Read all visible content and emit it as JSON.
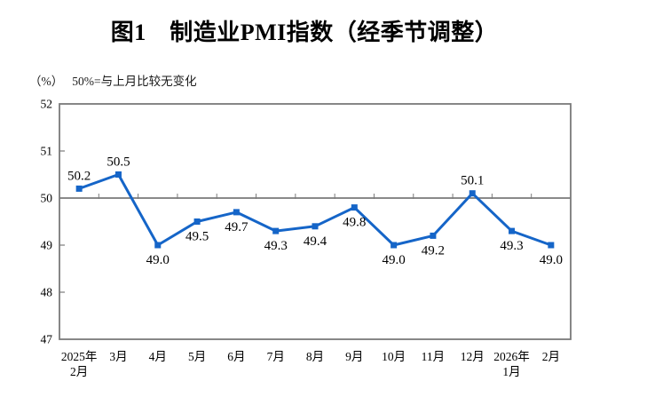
{
  "figure": {
    "title": "图1　制造业PMI指数（经季节调整）",
    "unit_label": "（%）",
    "reference_note": "50%=与上月比较无变化"
  },
  "colors": {
    "line": "#1565C8",
    "marker": "#1565C8",
    "axis": "#7A7A7A",
    "text": "#000000"
  },
  "chart_data": {
    "type": "line",
    "title": "图1 制造业PMI指数（经季节调整）",
    "unit": "%",
    "reference_note": "50%=与上月比较无变化",
    "categories": [
      "2025年\n2月",
      "3月",
      "4月",
      "5月",
      "6月",
      "7月",
      "8月",
      "9月",
      "10月",
      "11月",
      "12月",
      "2026年\n1月",
      "2月"
    ],
    "values": [
      50.2,
      50.5,
      49.0,
      49.5,
      49.7,
      49.3,
      49.4,
      49.8,
      49.0,
      49.2,
      50.1,
      49.3,
      49.0
    ],
    "label_positions": [
      "above",
      "above",
      "below",
      "below",
      "below",
      "below",
      "below",
      "below",
      "below",
      "below",
      "above",
      "below",
      "below"
    ],
    "ylim": [
      47,
      52
    ],
    "ytick_step": 1,
    "reference_value": 50,
    "grid": false,
    "legend": false,
    "marker": "square"
  }
}
